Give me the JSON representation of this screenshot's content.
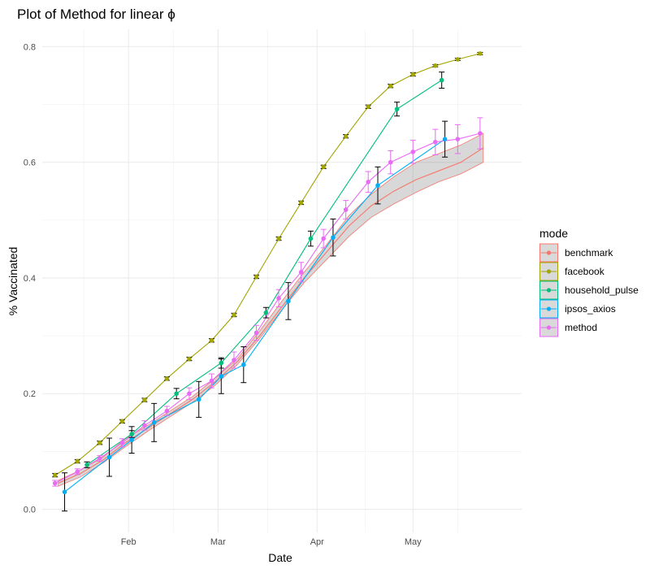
{
  "chart_data": {
    "type": "line",
    "title": "Plot of Method for linear ϕ",
    "xlabel": "Date",
    "ylabel": "% Vaccinated",
    "x_axis_type": "date",
    "xlim": [
      "2021-01-05",
      "2021-06-04"
    ],
    "ylim": [
      -0.04,
      0.83
    ],
    "x_ticks": [
      {
        "date": "2021-02-01",
        "label": "Feb"
      },
      {
        "date": "2021-03-01",
        "label": "Mar"
      },
      {
        "date": "2021-04-01",
        "label": "Apr"
      },
      {
        "date": "2021-05-01",
        "label": "May"
      }
    ],
    "y_ticks": [
      {
        "value": 0.0,
        "label": "0.0"
      },
      {
        "value": 0.2,
        "label": "0.2"
      },
      {
        "value": 0.4,
        "label": "0.4"
      },
      {
        "value": 0.6,
        "label": "0.6"
      },
      {
        "value": 0.8,
        "label": "0.8"
      }
    ],
    "grid": true,
    "legend": {
      "title": "mode",
      "position": "right"
    },
    "series": [
      {
        "name": "benchmark",
        "color": "#F8766D",
        "ribbon": true,
        "x": [
          "2021-01-10",
          "2021-01-17",
          "2021-01-24",
          "2021-01-31",
          "2021-02-07",
          "2021-02-14",
          "2021-02-21",
          "2021-02-28",
          "2021-03-07",
          "2021-03-14",
          "2021-03-21",
          "2021-03-28",
          "2021-04-04",
          "2021-04-11",
          "2021-04-18",
          "2021-04-25",
          "2021-05-02",
          "2021-05-09",
          "2021-05-16",
          "2021-05-23"
        ],
        "values": [
          0.045,
          0.062,
          0.085,
          0.115,
          0.14,
          0.165,
          0.19,
          0.22,
          0.255,
          0.3,
          0.35,
          0.4,
          0.445,
          0.49,
          0.525,
          0.55,
          0.57,
          0.585,
          0.6,
          0.625
        ],
        "lower": [
          0.04,
          0.056,
          0.08,
          0.108,
          0.135,
          0.16,
          0.185,
          0.214,
          0.25,
          0.295,
          0.345,
          0.392,
          0.432,
          0.472,
          0.505,
          0.528,
          0.548,
          0.566,
          0.58,
          0.6
        ],
        "upper": [
          0.05,
          0.068,
          0.09,
          0.122,
          0.145,
          0.17,
          0.195,
          0.226,
          0.26,
          0.308,
          0.36,
          0.41,
          0.458,
          0.508,
          0.545,
          0.575,
          0.6,
          0.615,
          0.63,
          0.65
        ]
      },
      {
        "name": "facebook",
        "color": "#A3A500",
        "x": [
          "2021-01-09",
          "2021-01-16",
          "2021-01-23",
          "2021-01-30",
          "2021-02-06",
          "2021-02-13",
          "2021-02-20",
          "2021-02-27",
          "2021-03-06",
          "2021-03-13",
          "2021-03-20",
          "2021-03-27",
          "2021-04-03",
          "2021-04-10",
          "2021-04-17",
          "2021-04-24",
          "2021-05-01",
          "2021-05-08",
          "2021-05-15",
          "2021-05-22"
        ],
        "values": [
          0.059,
          0.083,
          0.115,
          0.152,
          0.189,
          0.226,
          0.26,
          0.292,
          0.336,
          0.402,
          0.468,
          0.53,
          0.592,
          0.645,
          0.696,
          0.732,
          0.752,
          0.767,
          0.778,
          0.788
        ],
        "lower": [
          0.056,
          0.08,
          0.112,
          0.149,
          0.186,
          0.223,
          0.257,
          0.289,
          0.333,
          0.399,
          0.465,
          0.527,
          0.589,
          0.642,
          0.693,
          0.729,
          0.749,
          0.765,
          0.776,
          0.786
        ],
        "upper": [
          0.062,
          0.086,
          0.118,
          0.155,
          0.192,
          0.229,
          0.263,
          0.295,
          0.339,
          0.405,
          0.471,
          0.533,
          0.595,
          0.648,
          0.699,
          0.735,
          0.755,
          0.769,
          0.78,
          0.79
        ]
      },
      {
        "name": "household_pulse",
        "color": "#00BF7D",
        "x": [
          "2021-01-19",
          "2021-02-02",
          "2021-02-16",
          "2021-03-02",
          "2021-03-16",
          "2021-03-30",
          "2021-04-26",
          "2021-05-10"
        ],
        "values": [
          0.077,
          0.13,
          0.2,
          0.253,
          0.34,
          0.468,
          0.692,
          0.742
        ],
        "lower": [
          0.072,
          0.124,
          0.191,
          0.244,
          0.331,
          0.455,
          0.68,
          0.728
        ],
        "upper": [
          0.082,
          0.136,
          0.209,
          0.262,
          0.349,
          0.481,
          0.704,
          0.756
        ]
      },
      {
        "name": "ipsos_axios",
        "color": "#00B0F6",
        "x": [
          "2021-01-12",
          "2021-01-26",
          "2021-02-02",
          "2021-02-09",
          "2021-02-23",
          "2021-03-02",
          "2021-03-09",
          "2021-03-23",
          "2021-04-06",
          "2021-04-20",
          "2021-05-11"
        ],
        "values": [
          0.03,
          0.09,
          0.12,
          0.15,
          0.19,
          0.23,
          0.25,
          0.36,
          0.47,
          0.56,
          0.64
        ],
        "lower": [
          -0.003,
          0.057,
          0.097,
          0.117,
          0.159,
          0.2,
          0.219,
          0.328,
          0.438,
          0.528,
          0.609
        ],
        "upper": [
          0.063,
          0.123,
          0.143,
          0.183,
          0.221,
          0.26,
          0.281,
          0.392,
          0.502,
          0.592,
          0.671
        ]
      },
      {
        "name": "method",
        "color": "#E76BF3",
        "x": [
          "2021-01-09",
          "2021-01-16",
          "2021-01-23",
          "2021-01-30",
          "2021-02-06",
          "2021-02-13",
          "2021-02-20",
          "2021-02-27",
          "2021-03-06",
          "2021-03-13",
          "2021-03-20",
          "2021-03-27",
          "2021-04-03",
          "2021-04-10",
          "2021-04-17",
          "2021-04-24",
          "2021-05-01",
          "2021-05-08",
          "2021-05-15",
          "2021-05-22"
        ],
        "values": [
          0.045,
          0.065,
          0.088,
          0.115,
          0.145,
          0.17,
          0.2,
          0.222,
          0.258,
          0.305,
          0.365,
          0.41,
          0.468,
          0.518,
          0.566,
          0.6,
          0.618,
          0.635,
          0.64,
          0.65
        ],
        "lower": [
          0.04,
          0.06,
          0.083,
          0.108,
          0.137,
          0.162,
          0.19,
          0.21,
          0.244,
          0.292,
          0.35,
          0.393,
          0.452,
          0.502,
          0.548,
          0.58,
          0.598,
          0.613,
          0.615,
          0.623
        ],
        "upper": [
          0.05,
          0.07,
          0.093,
          0.122,
          0.153,
          0.178,
          0.21,
          0.234,
          0.272,
          0.318,
          0.38,
          0.427,
          0.484,
          0.534,
          0.584,
          0.62,
          0.638,
          0.657,
          0.665,
          0.677
        ]
      }
    ]
  }
}
